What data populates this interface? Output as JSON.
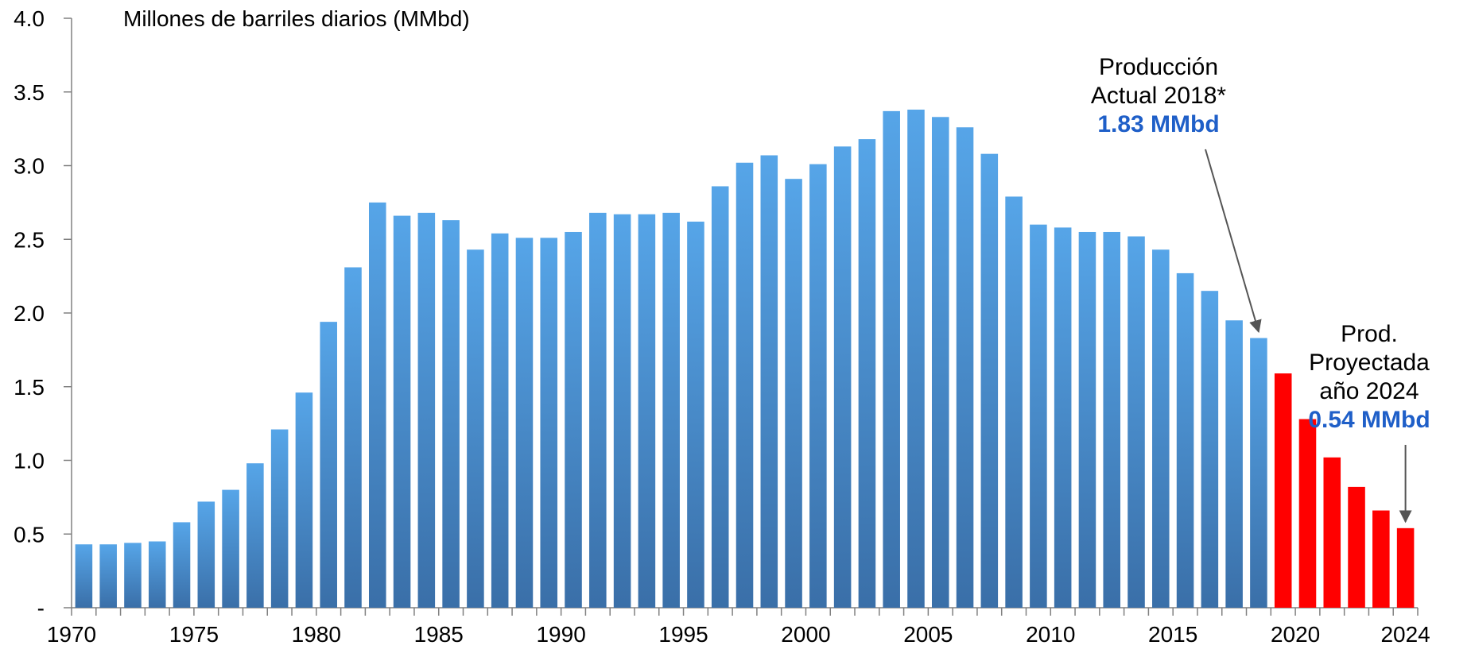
{
  "chart_data": {
    "type": "bar",
    "ylabel": "Millones de barriles diarios (MMbd)",
    "ylim": [
      0,
      4.0
    ],
    "yticks": [
      {
        "value": 0,
        "label": "-"
      },
      {
        "value": 0.5,
        "label": "0.5"
      },
      {
        "value": 1.0,
        "label": "1.0"
      },
      {
        "value": 1.5,
        "label": "1.5"
      },
      {
        "value": 2.0,
        "label": "2.0"
      },
      {
        "value": 2.5,
        "label": "2.5"
      },
      {
        "value": 3.0,
        "label": "3.0"
      },
      {
        "value": 3.5,
        "label": "3.5"
      },
      {
        "value": 4.0,
        "label": "4.0"
      }
    ],
    "xtick_labels": [
      "1970",
      "1975",
      "1980",
      "1985",
      "1990",
      "1995",
      "2000",
      "2005",
      "2010",
      "2015",
      "2020",
      "2024"
    ],
    "grid": false,
    "legend": "none",
    "categories": [
      1970,
      1971,
      1972,
      1973,
      1974,
      1975,
      1976,
      1977,
      1978,
      1979,
      1980,
      1981,
      1982,
      1983,
      1984,
      1985,
      1986,
      1987,
      1988,
      1989,
      1990,
      1991,
      1992,
      1993,
      1994,
      1995,
      1996,
      1997,
      1998,
      1999,
      2000,
      2001,
      2002,
      2003,
      2004,
      2005,
      2006,
      2007,
      2008,
      2009,
      2010,
      2011,
      2012,
      2013,
      2014,
      2015,
      2016,
      2017,
      2018,
      2019,
      2020,
      2021,
      2022,
      2023,
      2024
    ],
    "series": [
      {
        "color": "#3E7CC0",
        "values": [
          0.43,
          0.43,
          0.44,
          0.45,
          0.58,
          0.72,
          0.8,
          0.98,
          1.21,
          1.46,
          1.94,
          2.31,
          2.75,
          2.66,
          2.68,
          2.63,
          2.43,
          2.54,
          2.51,
          2.51,
          2.55,
          2.68,
          2.67,
          2.67,
          2.68,
          2.62,
          2.86,
          3.02,
          3.07,
          2.91,
          3.01,
          3.13,
          3.18,
          3.37,
          3.38,
          3.33,
          3.26,
          3.08,
          2.79,
          2.6,
          2.58,
          2.55,
          2.55,
          2.52,
          2.43,
          2.27,
          2.15,
          1.95,
          1.83,
          null,
          null,
          null,
          null,
          null,
          null
        ]
      },
      {
        "color": "#FF0000",
        "values": [
          null,
          null,
          null,
          null,
          null,
          null,
          null,
          null,
          null,
          null,
          null,
          null,
          null,
          null,
          null,
          null,
          null,
          null,
          null,
          null,
          null,
          null,
          null,
          null,
          null,
          null,
          null,
          null,
          null,
          null,
          null,
          null,
          null,
          null,
          null,
          null,
          null,
          null,
          null,
          null,
          null,
          null,
          null,
          null,
          null,
          null,
          null,
          null,
          null,
          1.59,
          1.28,
          1.02,
          0.82,
          0.66,
          0.54
        ]
      }
    ],
    "annotations": [
      {
        "id": "actual",
        "target_year": 2018,
        "lines": [
          "Producción",
          "Actual 2018*"
        ],
        "value_text": "1.83 MMbd",
        "value_color": "#1F5FC8"
      },
      {
        "id": "projected",
        "target_year": 2024,
        "lines": [
          "Prod.",
          "Proyectada",
          "año 2024"
        ],
        "value_text": "0.54 MMbd",
        "value_color": "#1F5FC8"
      }
    ]
  }
}
